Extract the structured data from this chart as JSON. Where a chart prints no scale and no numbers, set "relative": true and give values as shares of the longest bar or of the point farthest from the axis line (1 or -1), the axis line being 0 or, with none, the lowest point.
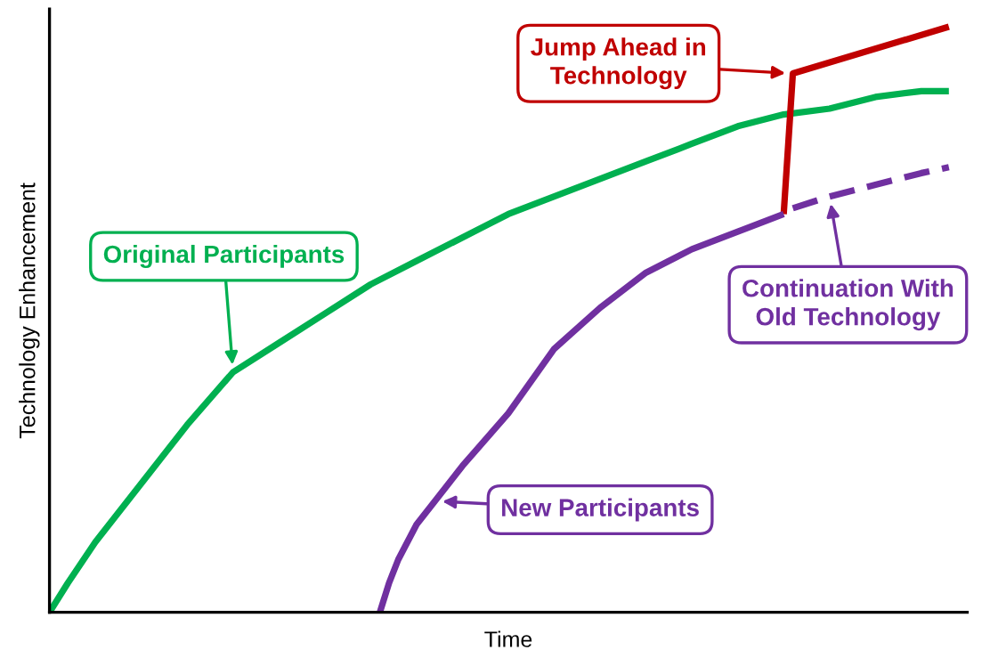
{
  "chart_data": {
    "type": "line",
    "relative": true,
    "xlabel": "Time",
    "ylabel": "Technology Enhancement",
    "categories": [
      null,
      null,
      null,
      null,
      null,
      null,
      null,
      null,
      null,
      null,
      null,
      null,
      null,
      null,
      null,
      null,
      null,
      null,
      null,
      null,
      null,
      null,
      null,
      null,
      null,
      null,
      null,
      null,
      null,
      null,
      null,
      null,
      null,
      null,
      null,
      null,
      null,
      null,
      null,
      null,
      null,
      null,
      null,
      null,
      null,
      null,
      null,
      null,
      null,
      null,
      null,
      null,
      null,
      null,
      null,
      null,
      null,
      null,
      null,
      null,
      null,
      null,
      null,
      null,
      null,
      null,
      null,
      null,
      null,
      null,
      null,
      null,
      null,
      null,
      null,
      null,
      null,
      null,
      null,
      null,
      null,
      null,
      null,
      null,
      null,
      null,
      null,
      null,
      null,
      null,
      null,
      null,
      null,
      null,
      null,
      null,
      null,
      null,
      null,
      null
    ],
    "series": [
      {
        "name": "Original Participants",
        "color": "#00b050",
        "line_style": "solid",
        "values": [
          0,
          null,
          0.05,
          null,
          null,
          0.12,
          null,
          null,
          null,
          null,
          0.22,
          null,
          null,
          null,
          null,
          0.32,
          null,
          null,
          null,
          null,
          0.41,
          null,
          null,
          null,
          null,
          0.46,
          null,
          null,
          null,
          null,
          0.51,
          null,
          null,
          null,
          null,
          0.56,
          null,
          null,
          null,
          null,
          0.6,
          null,
          null,
          null,
          null,
          0.64,
          null,
          null,
          null,
          null,
          0.68,
          null,
          null,
          null,
          null,
          0.71,
          null,
          null,
          null,
          null,
          0.74,
          null,
          null,
          null,
          null,
          0.77,
          null,
          null,
          null,
          null,
          0.8,
          null,
          null,
          null,
          null,
          0.83,
          null,
          null,
          null,
          null,
          0.85,
          null,
          null,
          null,
          null,
          0.86,
          null,
          null,
          null,
          null,
          0.88,
          null,
          null,
          null,
          null,
          0.89,
          null,
          null,
          0.89,
          null
        ]
      },
      {
        "name": "Jump Ahead in\nTechnology",
        "color": "#c00000",
        "line_style": "solid",
        "values": [
          null,
          null,
          null,
          null,
          null,
          null,
          null,
          null,
          null,
          null,
          null,
          null,
          null,
          null,
          null,
          null,
          null,
          null,
          null,
          null,
          null,
          null,
          null,
          null,
          null,
          null,
          null,
          null,
          null,
          null,
          null,
          null,
          null,
          null,
          null,
          null,
          null,
          null,
          null,
          null,
          null,
          null,
          null,
          null,
          null,
          null,
          null,
          null,
          null,
          null,
          null,
          null,
          null,
          null,
          null,
          null,
          null,
          null,
          null,
          null,
          null,
          null,
          null,
          null,
          null,
          null,
          null,
          null,
          null,
          null,
          null,
          null,
          null,
          null,
          null,
          null,
          null,
          null,
          null,
          null,
          0.68,
          0.92,
          null,
          null,
          null,
          null,
          null,
          null,
          null,
          null,
          null,
          null,
          null,
          null,
          null,
          null,
          null,
          null,
          1.0,
          null
        ]
      },
      {
        "name": "New Participants",
        "color": "#7030a0",
        "line_style": "solid",
        "values": [
          null,
          null,
          null,
          null,
          null,
          null,
          null,
          null,
          null,
          null,
          null,
          null,
          null,
          null,
          null,
          null,
          null,
          null,
          null,
          null,
          null,
          null,
          null,
          null,
          null,
          null,
          null,
          null,
          null,
          null,
          null,
          null,
          null,
          null,
          null,
          null,
          0,
          0.05,
          0.09,
          null,
          0.15,
          null,
          0.19,
          null,
          null,
          0.25,
          null,
          null,
          null,
          null,
          0.34,
          null,
          null,
          null,
          null,
          0.45,
          null,
          null,
          null,
          null,
          0.52,
          null,
          null,
          null,
          null,
          0.58,
          null,
          null,
          null,
          null,
          0.62,
          null,
          null,
          null,
          null,
          0.65,
          null,
          null,
          null,
          null,
          0.68,
          null,
          null,
          null,
          null,
          null,
          null,
          null,
          null,
          null,
          null,
          null,
          null,
          null,
          null,
          null,
          null,
          null,
          null,
          null
        ]
      },
      {
        "name": "Continuation With\nOld Technology",
        "color": "#7030a0",
        "line_style": "dashed",
        "values": [
          null,
          null,
          null,
          null,
          null,
          null,
          null,
          null,
          null,
          null,
          null,
          null,
          null,
          null,
          null,
          null,
          null,
          null,
          null,
          null,
          null,
          null,
          null,
          null,
          null,
          null,
          null,
          null,
          null,
          null,
          null,
          null,
          null,
          null,
          null,
          null,
          null,
          null,
          null,
          null,
          null,
          null,
          null,
          null,
          null,
          null,
          null,
          null,
          null,
          null,
          null,
          null,
          null,
          null,
          null,
          null,
          null,
          null,
          null,
          null,
          null,
          null,
          null,
          null,
          null,
          null,
          null,
          null,
          null,
          null,
          null,
          null,
          null,
          null,
          null,
          null,
          null,
          null,
          null,
          null,
          null,
          0.69,
          null,
          null,
          null,
          0.71,
          null,
          null,
          null,
          null,
          0.73,
          null,
          null,
          null,
          null,
          0.75,
          null,
          null,
          0.76,
          null
        ]
      }
    ]
  }
}
